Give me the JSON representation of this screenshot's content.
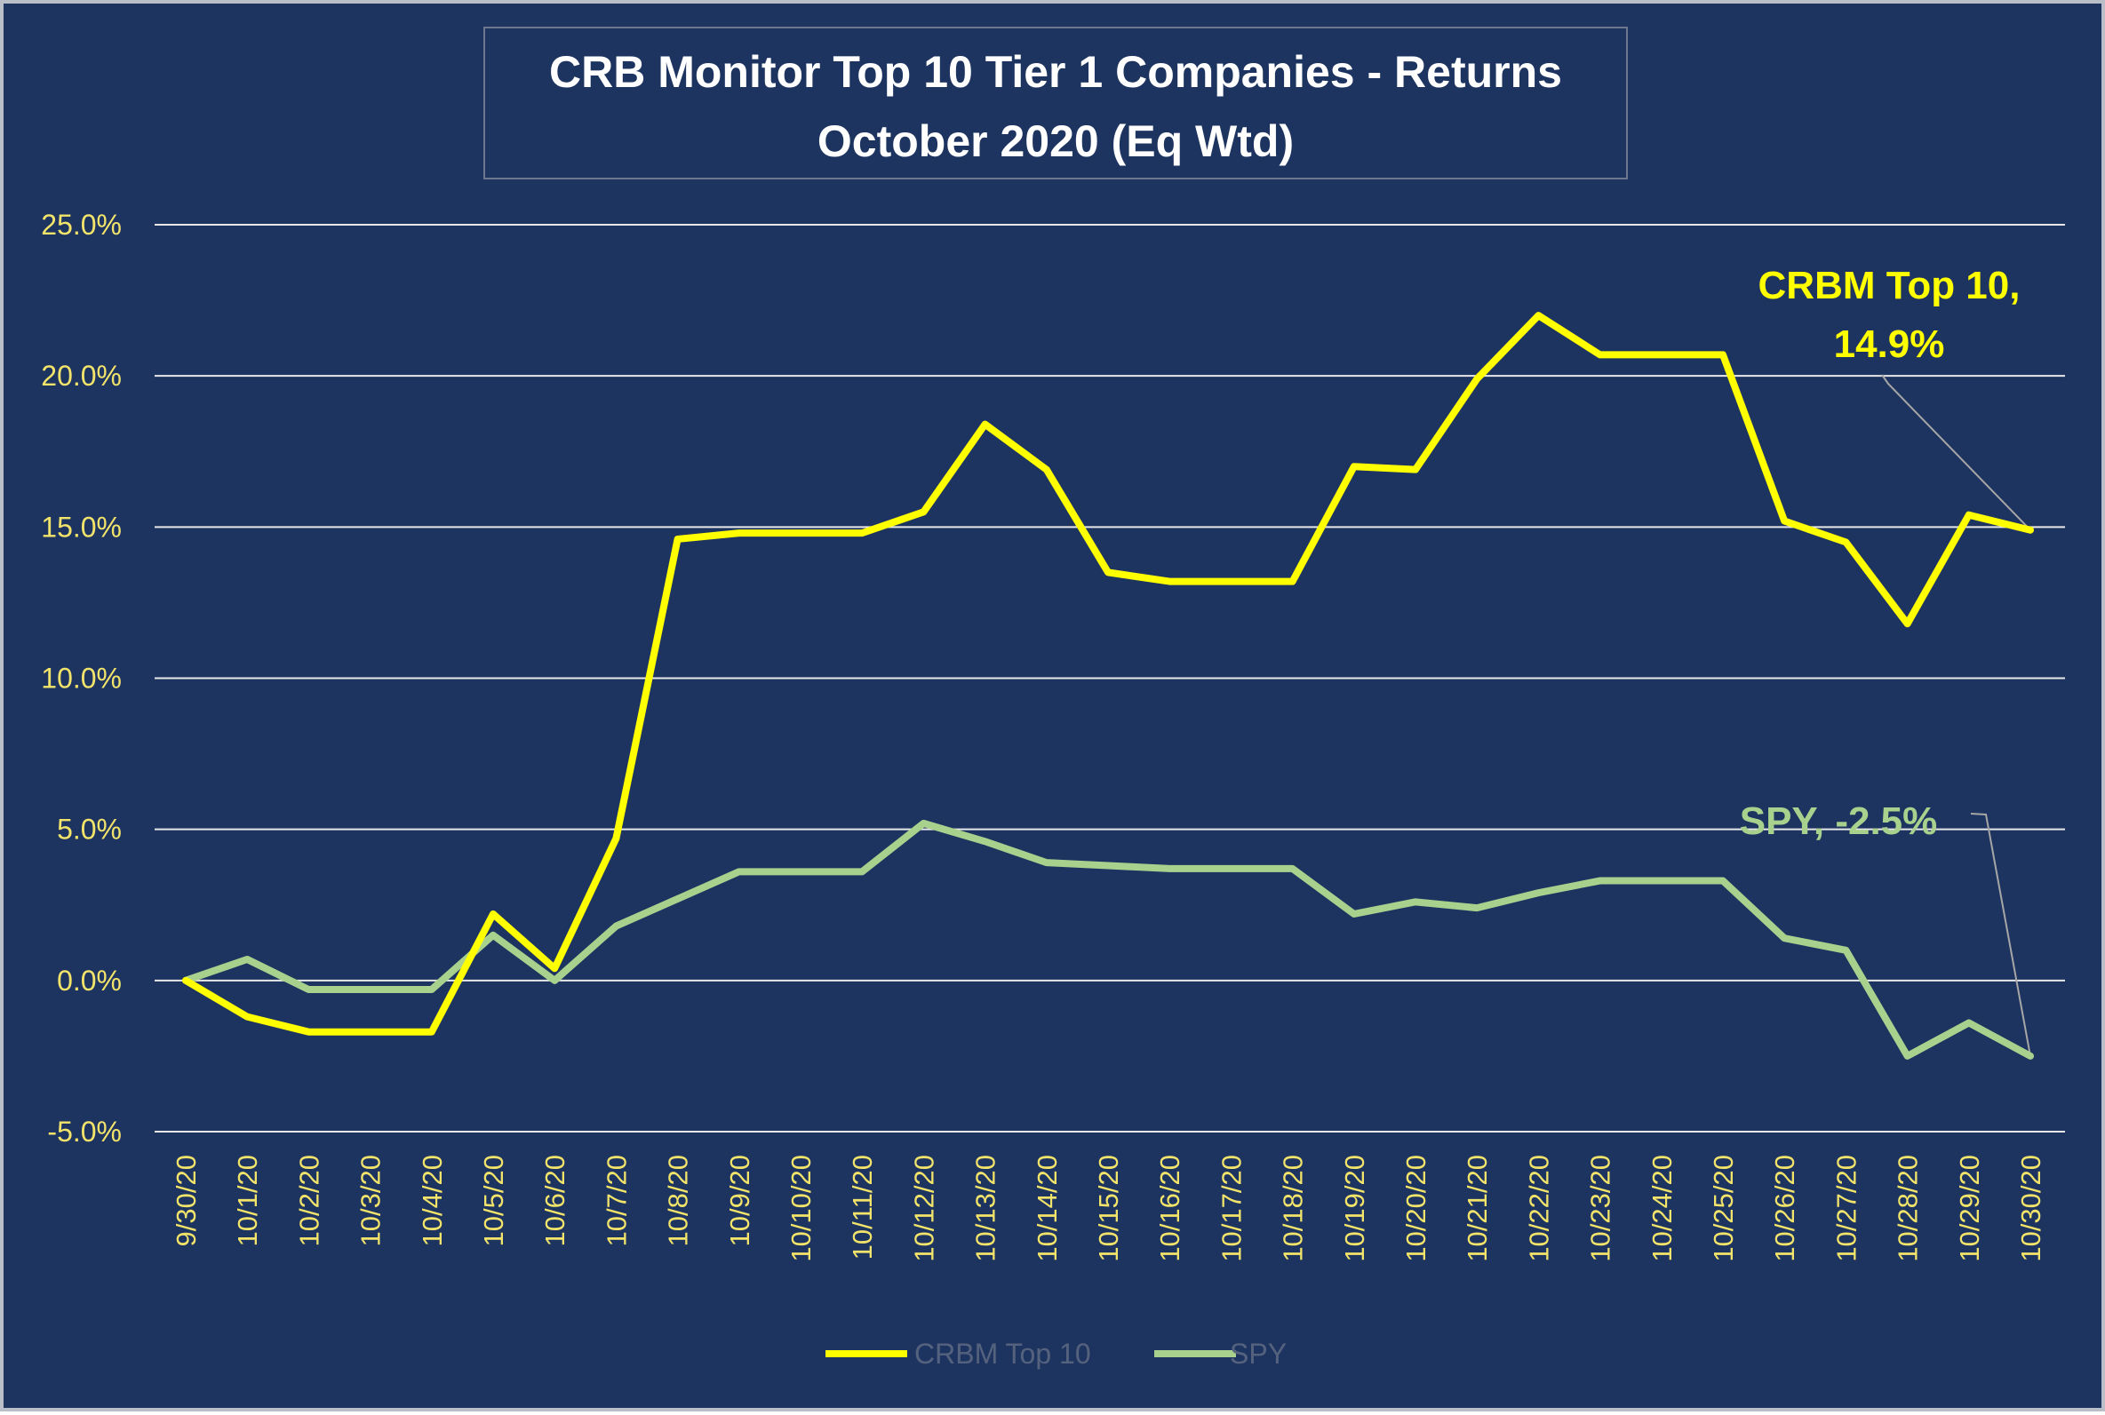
{
  "chart_data": {
    "type": "line",
    "title": [
      "CRB Monitor Top 10 Tier 1 Companies - Returns",
      "October 2020 (Eq Wtd)"
    ],
    "categories": [
      "9/30/20",
      "10/1/20",
      "10/2/20",
      "10/3/20",
      "10/4/20",
      "10/5/20",
      "10/6/20",
      "10/7/20",
      "10/8/20",
      "10/9/20",
      "10/10/20",
      "10/11/20",
      "10/12/20",
      "10/13/20",
      "10/14/20",
      "10/15/20",
      "10/16/20",
      "10/17/20",
      "10/18/20",
      "10/19/20",
      "10/20/20",
      "10/21/20",
      "10/22/20",
      "10/23/20",
      "10/24/20",
      "10/25/20",
      "10/26/20",
      "10/27/20",
      "10/28/20",
      "10/29/20",
      "10/30/20"
    ],
    "series": [
      {
        "name": "CRBM Top 10",
        "color": "#ffff00",
        "values": [
          0.0,
          -1.2,
          -1.7,
          -1.7,
          -1.7,
          2.2,
          0.4,
          4.7,
          14.6,
          14.8,
          14.8,
          14.8,
          15.5,
          18.4,
          16.9,
          13.5,
          13.2,
          13.2,
          13.2,
          17.0,
          16.9,
          19.9,
          22.0,
          20.7,
          20.7,
          20.7,
          15.2,
          14.5,
          11.8,
          15.4,
          14.9
        ]
      },
      {
        "name": "SPY",
        "color": "#a9d18e",
        "values": [
          0.0,
          0.7,
          -0.3,
          -0.3,
          -0.3,
          1.5,
          0.0,
          1.8,
          2.7,
          3.6,
          3.6,
          3.6,
          5.2,
          4.6,
          3.9,
          3.8,
          3.7,
          3.7,
          3.7,
          2.2,
          2.6,
          2.4,
          2.9,
          3.3,
          3.3,
          3.3,
          1.4,
          1.0,
          -2.5,
          -1.4,
          -2.5
        ]
      }
    ],
    "yticks": [
      "25.0%",
      "20.0%",
      "15.0%",
      "10.0%",
      "5.0%",
      "0.0%",
      "-5.0%"
    ],
    "ylim": [
      -5,
      25
    ],
    "grid": true,
    "legend_position": "bottom",
    "annotations": [
      {
        "series": "CRBM Top 10",
        "lines": [
          "CRBM Top 10,",
          "14.9%"
        ]
      },
      {
        "series": "SPY",
        "lines": [
          "SPY, -2.5%"
        ]
      }
    ]
  },
  "colors": {
    "background": "#1e3460",
    "gridline": "#e8e8e8",
    "tick_text": "#f2e36a",
    "title_text": "#ffffff",
    "legend_text": "#55627e"
  }
}
